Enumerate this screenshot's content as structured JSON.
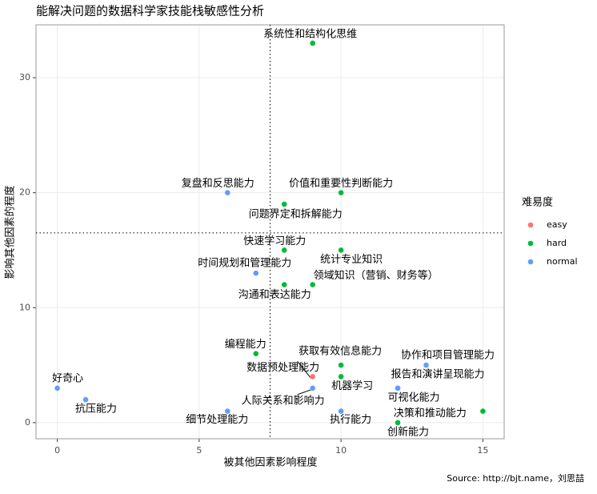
{
  "chart_data": {
    "type": "scatter",
    "title": "能解决问题的数据科学家技能栈敏感性分析",
    "x_label": "被其他因素影响程度",
    "y_label": "影响其他因素的程度",
    "caption": "Source: http://bjt.name，刘思喆",
    "legend_title": "难易度",
    "xlim": [
      -0.75,
      15.75
    ],
    "xticks": [
      0,
      5,
      10,
      15
    ],
    "ylim": [
      -1.4,
      34.6
    ],
    "yticks": [
      0,
      10,
      20,
      30
    ],
    "grid": true,
    "vline": 7.5,
    "hline": 16.5,
    "series": [
      {
        "name": "easy",
        "color": "#F8766D",
        "labels": [
          "数据预处理能力"
        ],
        "x": [
          9
        ],
        "y": [
          4
        ]
      },
      {
        "name": "hard",
        "color": "#00BA38",
        "labels": [
          "系统性和结构化思维",
          "价值和重要性判断能力",
          "问题界定和拆解能力",
          "快速学习能力",
          "统计专业知识",
          "沟通和表达能力",
          "领域知识（营销、财务等）",
          "编程能力",
          "获取有效信息能力",
          "机器学习",
          "决策和推动能力",
          "创新能力"
        ],
        "x": [
          9,
          10,
          8,
          8,
          10,
          8,
          9,
          7,
          10,
          10,
          15,
          12
        ],
        "y": [
          33,
          20,
          19,
          15,
          15,
          12,
          12,
          6,
          5,
          4,
          1,
          0
        ]
      },
      {
        "name": "normal",
        "color": "#619CFF",
        "labels": [
          "复盘和反思能力",
          "时间规划和管理能力",
          "协作和项目管理能力",
          "好奇心",
          "报告和演讲呈现能力",
          "人际关系和影响力",
          "抗压能力",
          "可视化能力",
          "细节处理能力",
          "执行能力"
        ],
        "x": [
          6,
          7,
          13,
          0,
          12,
          9,
          1,
          12,
          6,
          10
        ],
        "y": [
          20,
          13,
          5,
          3,
          3,
          3,
          2,
          3,
          1,
          1
        ]
      }
    ]
  }
}
